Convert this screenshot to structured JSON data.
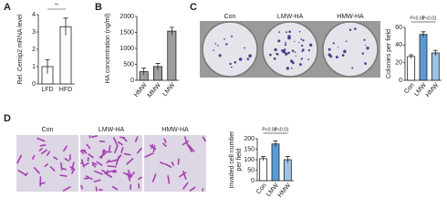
{
  "panels": [
    "A",
    "B",
    "C",
    "D"
  ],
  "images": {
    "c": [
      "Con",
      "LMW-HA",
      "HMW-HA"
    ],
    "d": [
      "Con",
      "LMW-HA",
      "HMW-HA"
    ]
  },
  "chart_data": [
    {
      "type": "bar",
      "y_label": [
        "Rel. Cemip2 mRNA level"
      ],
      "categories": [
        "LFD",
        "HFD"
      ],
      "values": [
        1.0,
        3.3
      ],
      "errors": [
        0.4,
        0.5
      ],
      "colors": [
        "#ffffff",
        "#ffffff"
      ],
      "ylim": [
        0,
        4
      ],
      "yticks": [
        0,
        1,
        2,
        3,
        4
      ],
      "annotations": [
        "**"
      ]
    },
    {
      "type": "bar",
      "y_label": [
        "HA concentration (ng/ml)"
      ],
      "categories": [
        "HMW",
        "MMW",
        "LMW"
      ],
      "values": [
        270,
        430,
        1540
      ],
      "errors": [
        110,
        100,
        120
      ],
      "colors": [
        "#9e9e9e",
        "#9e9e9e",
        "#9e9e9e"
      ],
      "ylim": [
        0,
        2000
      ],
      "yticks": [
        0,
        500,
        1000,
        1500,
        2000
      ],
      "annotations": []
    },
    {
      "type": "bar",
      "y_label": [
        "Colonies per field"
      ],
      "categories": [
        "Con",
        "LMW",
        "HMW"
      ],
      "values": [
        27,
        52,
        31
      ],
      "errors": [
        2,
        3,
        3
      ],
      "colors": [
        "#ffffff",
        "#5b9bd5",
        "#9dc3e6"
      ],
      "ylim": [
        0,
        60
      ],
      "yticks": [
        0,
        20,
        40,
        60
      ],
      "annotations": [
        "P<0.01",
        "P<0.01"
      ]
    },
    {
      "type": "bar",
      "y_label": [
        "Invaded cell number",
        "per field"
      ],
      "categories": [
        "Con",
        "LMW",
        "HMW"
      ],
      "values": [
        105,
        175,
        100
      ],
      "errors": [
        10,
        15,
        15
      ],
      "colors": [
        "#ffffff",
        "#5b9bd5",
        "#9dc3e6"
      ],
      "ylim": [
        0,
        200
      ],
      "yticks": [
        0,
        50,
        100,
        150,
        200
      ],
      "annotations": [
        "P<0.01",
        "P<0.01"
      ]
    }
  ]
}
